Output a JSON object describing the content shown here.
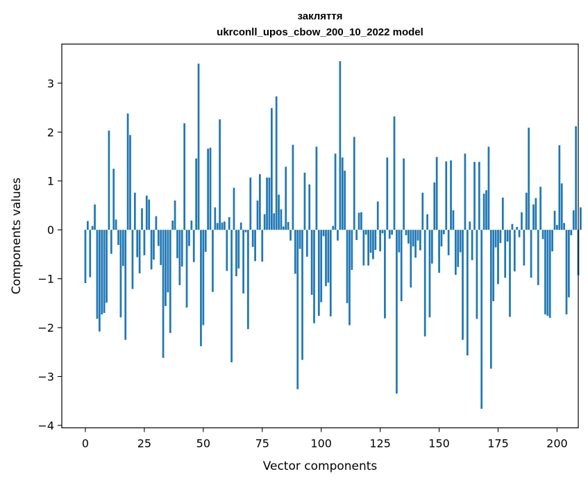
{
  "chart_data": {
    "type": "bar",
    "title": "закляття",
    "subtitle": "ukrconll_upos_cbow_200_10_2022 model",
    "xlabel": "Vector components",
    "ylabel": "Components values",
    "xlim": [
      -10,
      209
    ],
    "ylim": [
      -4.05,
      3.8
    ],
    "xticks": [
      0,
      25,
      50,
      75,
      100,
      125,
      150,
      175,
      200
    ],
    "xtick_labels": [
      "0",
      "25",
      "50",
      "75",
      "100",
      "125",
      "150",
      "175",
      "200"
    ],
    "yticks": [
      -4,
      -3,
      -2,
      -1,
      0,
      1,
      2,
      3
    ],
    "ytick_labels": [
      "−4",
      "−3",
      "−2",
      "−1",
      "0",
      "1",
      "2",
      "3"
    ],
    "bar_color": "#1f77b4",
    "grid": false,
    "x_start": 0,
    "values": [
      -1.09,
      0.18,
      -0.97,
      0.08,
      0.52,
      -1.82,
      -2.08,
      -1.73,
      -1.7,
      -1.49,
      2.03,
      -0.49,
      1.25,
      0.21,
      -0.31,
      -1.79,
      -0.74,
      -2.25,
      2.38,
      1.94,
      -1.21,
      0.76,
      -0.56,
      -0.89,
      0.44,
      -0.52,
      0.7,
      0.62,
      -0.81,
      -0.61,
      0.28,
      -0.33,
      -0.72,
      -2.62,
      -1.56,
      -1.28,
      -2.11,
      0.19,
      0.6,
      -0.58,
      -1.13,
      -0.75,
      2.18,
      -1.59,
      -0.33,
      0.19,
      -0.66,
      1.46,
      3.4,
      -2.38,
      -1.95,
      -0.45,
      1.66,
      1.68,
      -1.27,
      0.46,
      0.14,
      2.26,
      0.15,
      0.17,
      -0.84,
      0.26,
      -2.71,
      0.86,
      -0.95,
      -0.79,
      0.15,
      -1.3,
      -0.05,
      -2.03,
      1.07,
      -0.35,
      -0.64,
      0.6,
      1.14,
      -0.65,
      0.32,
      1.07,
      1.07,
      2.49,
      0.34,
      2.73,
      0.72,
      0.42,
      0.07,
      1.29,
      0.16,
      -0.22,
      1.74,
      -0.9,
      -3.26,
      -0.39,
      -2.66,
      1.17,
      -0.55,
      0.93,
      -1.33,
      -1.91,
      1.7,
      -1.76,
      -1.48,
      -0.13,
      -1.15,
      -1.08,
      -1.77,
      0.08,
      1.56,
      -0.22,
      3.45,
      1.48,
      1.21,
      -1.5,
      -1.95,
      -0.82,
      1.9,
      -0.21,
      0.35,
      0.36,
      -0.73,
      -0.1,
      -0.73,
      -0.47,
      -0.6,
      -0.41,
      0.58,
      -0.44,
      -0.07,
      -1.81,
      1.48,
      -0.18,
      -0.1,
      2.32,
      -3.35,
      -0.46,
      -1.46,
      1.46,
      -0.11,
      -0.28,
      -1.18,
      -0.34,
      -0.57,
      -0.22,
      -0.42,
      0.76,
      -2.18,
      0.32,
      -1.79,
      -0.69,
      0.97,
      1.49,
      -0.88,
      -0.34,
      -0.09,
      1.4,
      -0.52,
      1.42,
      0.4,
      -0.92,
      -0.76,
      -0.46,
      -2.25,
      1.56,
      -2.57,
      0.17,
      -0.62,
      1.39,
      -1.82,
      1.39,
      -3.66,
      0.74,
      0.81,
      1.7,
      -2.84,
      -1.46,
      -0.36,
      -1.11,
      -0.27,
      0.66,
      -0.98,
      -0.24,
      -1.78,
      0.12,
      -0.85,
      0.06,
      -0.15,
      0.36,
      -0.73,
      0.76,
      2.09,
      -0.98,
      0.52,
      0.65,
      -1.13,
      0.88,
      -0.19,
      -1.73,
      -1.76,
      -1.8,
      -0.44,
      0.39,
      0.1,
      1.73,
      0.95,
      0.14,
      -1.73,
      -1.38,
      -0.11,
      0.4,
      2.12,
      -0.93,
      0.46
    ]
  }
}
